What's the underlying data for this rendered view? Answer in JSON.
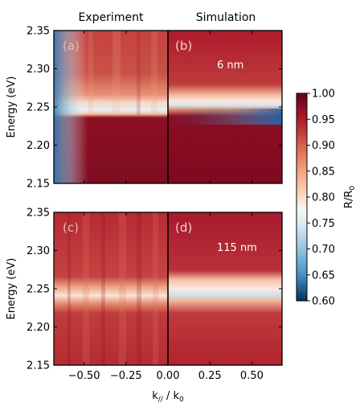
{
  "figure": {
    "column_titles": {
      "left": "Experiment",
      "right": "Simulation"
    },
    "xlabel_main": "k",
    "xlabel_sub": "//",
    "xlabel_mid": " / k",
    "xlabel_sub2": "0",
    "colorbar": {
      "label_main": "R/R",
      "label_sub": "0",
      "range": [
        0.6,
        1.0
      ],
      "ticks": [
        "0.60",
        "0.65",
        "0.70",
        "0.75",
        "0.80",
        "0.85",
        "0.90",
        "0.95",
        "1.00"
      ],
      "colormap": "RdBu (red = 1.00, white ≈ 0.80, blue = 0.60)"
    }
  },
  "chart_data": [
    {
      "type": "heatmap",
      "panels": [
        {
          "label": "(a)",
          "source": "Experiment",
          "x_range": [
            -0.68,
            0.0
          ]
        },
        {
          "label": "(b)",
          "source": "Simulation",
          "annotation": "6 nm",
          "x_range": [
            0.0,
            0.68
          ]
        }
      ],
      "xlim": [
        -0.68,
        0.68
      ],
      "ylim": [
        2.15,
        2.35
      ],
      "ylabel": "Energy (eV)",
      "yticks": [
        "2.35",
        "2.30",
        "2.25",
        "2.20",
        "2.15"
      ],
      "features": {
        "experiment_dip_energy_eV": 2.24,
        "experiment_min_R_over_R0": 0.65,
        "simulation_dip_energy_eV": 2.237,
        "simulation_min_R_over_R0": 0.62,
        "low_energy_region_R_over_R0": 0.98,
        "high_energy_region_R_over_R0": 0.93
      }
    },
    {
      "type": "heatmap",
      "panels": [
        {
          "label": "(c)",
          "source": "Experiment",
          "x_range": [
            -0.68,
            0.0
          ]
        },
        {
          "label": "(d)",
          "source": "Simulation",
          "annotation": "115 nm",
          "x_range": [
            0.0,
            0.68
          ]
        }
      ],
      "xlim": [
        -0.68,
        0.68
      ],
      "ylim": [
        2.15,
        2.35
      ],
      "ylabel": "Energy (eV)",
      "xlabel": "k// / k0",
      "xticks": [
        -0.5,
        -0.25,
        0.0,
        0.25,
        0.5
      ],
      "xtick_labels": [
        "−0.50",
        "−0.25",
        "0.00",
        "0.25",
        "0.50"
      ],
      "yticks": [
        "2.35",
        "2.30",
        "2.25",
        "2.20",
        "2.15"
      ],
      "features": {
        "experiment_dip_energy_eV": 2.232,
        "experiment_min_R_over_R0": 0.8,
        "simulation_dip_energy_eV": 2.237,
        "simulation_min_R_over_R0": 0.72,
        "background_R_over_R0": 0.93
      }
    }
  ]
}
